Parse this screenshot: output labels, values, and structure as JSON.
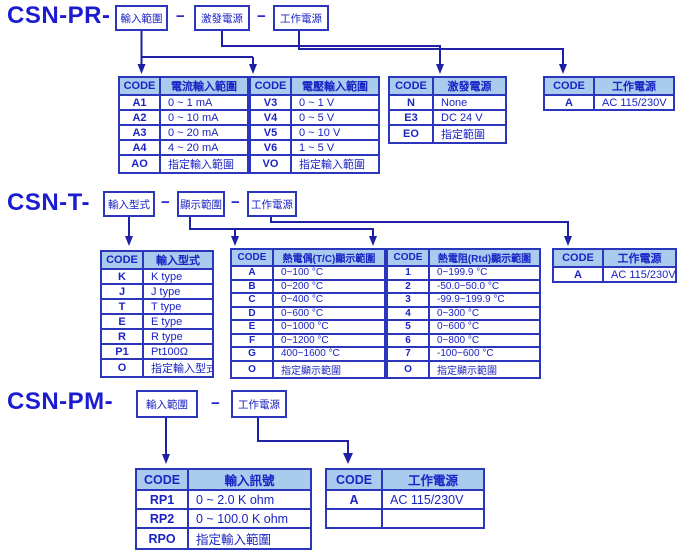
{
  "colors": {
    "table_border": "#2c36bd",
    "header_bg": "#a8cbee",
    "text": "#1b23c4",
    "title": "#1b1bd0",
    "connector": "#1f20a6",
    "background": "#ffffff"
  },
  "sections": [
    {
      "title": "CSN-PR-",
      "dash": "−",
      "boxes": [
        "輸入範圍",
        "激發電源",
        "工作電源"
      ],
      "tables": [
        {
          "headers": [
            "CODE",
            "電流輸入範圍"
          ],
          "rows": [
            [
              "A1",
              "0 ~ 1 mA"
            ],
            [
              "A2",
              "0 ~ 10 mA"
            ],
            [
              "A3",
              "0 ~ 20 mA"
            ],
            [
              "A4",
              "4 ~ 20 mA"
            ],
            [
              "AO",
              "指定輸入範圍"
            ]
          ]
        },
        {
          "headers": [
            "CODE",
            "電壓輸入範圍"
          ],
          "rows": [
            [
              "V3",
              "0 ~ 1 V"
            ],
            [
              "V4",
              "0 ~ 5 V"
            ],
            [
              "V5",
              "0 ~ 10 V"
            ],
            [
              "V6",
              "1 ~ 5 V"
            ],
            [
              "VO",
              "指定輸入範圍"
            ]
          ]
        },
        {
          "headers": [
            "CODE",
            "激發電源"
          ],
          "rows": [
            [
              "N",
              "None"
            ],
            [
              "E3",
              "DC 24 V"
            ],
            [
              "EO",
              "指定範圍"
            ]
          ]
        },
        {
          "headers": [
            "CODE",
            "工作電源"
          ],
          "rows": [
            [
              "A",
              "AC 115/230V"
            ]
          ]
        }
      ]
    },
    {
      "title": "CSN-T-",
      "dash": "−",
      "boxes": [
        "輸入型式",
        "顯示範圍",
        "工作電源"
      ],
      "tables": [
        {
          "headers": [
            "CODE",
            "輸入型式"
          ],
          "rows": [
            [
              "K",
              "K type"
            ],
            [
              "J",
              "J type"
            ],
            [
              "T",
              "T type"
            ],
            [
              "E",
              "E type"
            ],
            [
              "R",
              "R type"
            ],
            [
              "P1",
              "Pt100Ω"
            ],
            [
              "O",
              "指定輸入型式"
            ]
          ]
        },
        {
          "headers": [
            "CODE",
            "熱電偶(T/C)顯示範圍"
          ],
          "rows": [
            [
              "A",
              "0~100 °C"
            ],
            [
              "B",
              "0~200 °C"
            ],
            [
              "C",
              "0~400 °C"
            ],
            [
              "D",
              "0~600 °C"
            ],
            [
              "E",
              "0~1000 °C"
            ],
            [
              "F",
              "0~1200 °C"
            ],
            [
              "G",
              "400~1600 °C"
            ],
            [
              "O",
              "指定顯示範圍"
            ]
          ]
        },
        {
          "headers": [
            "CODE",
            "熱電阻(Rtd)顯示範圍"
          ],
          "rows": [
            [
              "1",
              "0~199.9 °C"
            ],
            [
              "2",
              "-50.0~50.0 °C"
            ],
            [
              "3",
              "-99.9~199.9 °C"
            ],
            [
              "4",
              "0~300 °C"
            ],
            [
              "5",
              "0~600 °C"
            ],
            [
              "6",
              "0~800 °C"
            ],
            [
              "7",
              "-100~600 °C"
            ],
            [
              "O",
              "指定顯示範圍"
            ]
          ]
        },
        {
          "headers": [
            "CODE",
            "工作電源"
          ],
          "rows": [
            [
              "A",
              "AC 115/230V"
            ]
          ]
        }
      ]
    },
    {
      "title": "CSN-PM-",
      "dash": "−",
      "boxes": [
        "輸入範圍",
        "工作電源"
      ],
      "tables": [
        {
          "headers": [
            "CODE",
            "輸入訊號"
          ],
          "rows": [
            [
              "RP1",
              "0 ~ 2.0 K ohm"
            ],
            [
              "RP2",
              "0 ~ 100.0 K ohm"
            ],
            [
              "RPO",
              "指定輸入範圍"
            ]
          ]
        },
        {
          "headers": [
            "CODE",
            "工作電源"
          ],
          "rows": [
            [
              "A",
              "AC 115/230V"
            ],
            [
              "",
              ""
            ]
          ]
        }
      ]
    }
  ]
}
